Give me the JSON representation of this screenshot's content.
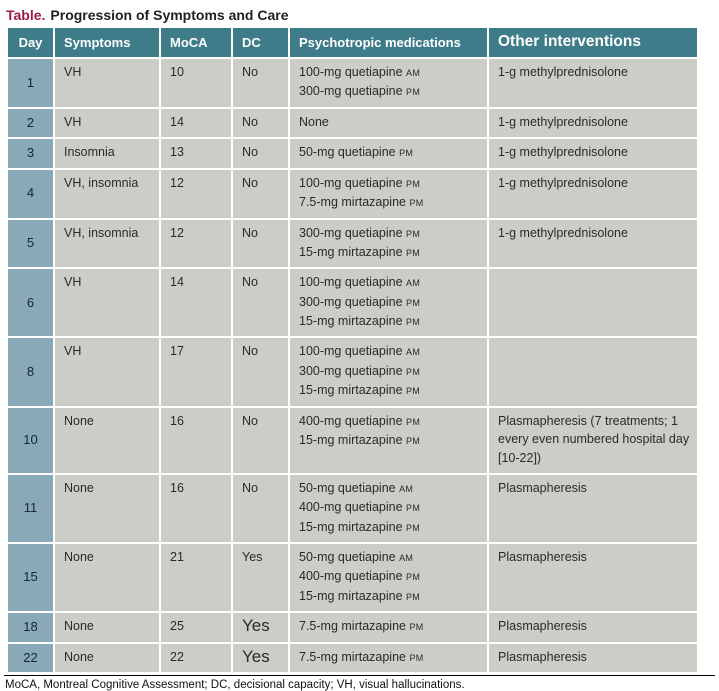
{
  "title": {
    "label": "Table.",
    "text": "Progression of Symptoms and Care"
  },
  "columns": [
    {
      "label": "Day"
    },
    {
      "label": "Symptoms"
    },
    {
      "label": "MoCA"
    },
    {
      "label": "DC"
    },
    {
      "label": "Psychotropic medications"
    },
    {
      "label": "Other interventions"
    }
  ],
  "rows": [
    {
      "day": "1",
      "symptoms": "VH",
      "moca": "10",
      "dc": "No",
      "dc_large": false,
      "medications": [
        {
          "dose": "100-mg quetiapine",
          "period": "AM"
        },
        {
          "dose": "300-mg quetiapine",
          "period": "PM"
        }
      ],
      "other": "1-g methylprednisolone"
    },
    {
      "day": "2",
      "symptoms": "VH",
      "moca": "14",
      "dc": "No",
      "dc_large": false,
      "medications": [
        {
          "dose": "None",
          "period": ""
        }
      ],
      "other": "1-g methylprednisolone"
    },
    {
      "day": "3",
      "symptoms": "Insomnia",
      "moca": "13",
      "dc": "No",
      "dc_large": false,
      "medications": [
        {
          "dose": "50-mg quetiapine",
          "period": "PM"
        }
      ],
      "other": "1-g methylprednisolone"
    },
    {
      "day": "4",
      "symptoms": "VH, insomnia",
      "moca": "12",
      "dc": "No",
      "dc_large": false,
      "medications": [
        {
          "dose": "100-mg quetiapine",
          "period": "PM"
        },
        {
          "dose": "7.5-mg mirtazapine",
          "period": "PM"
        }
      ],
      "other": "1-g methylprednisolone"
    },
    {
      "day": "5",
      "symptoms": "VH, insomnia",
      "moca": "12",
      "dc": "No",
      "dc_large": false,
      "medications": [
        {
          "dose": "300-mg quetiapine",
          "period": "PM"
        },
        {
          "dose": "15-mg mirtazapine",
          "period": "PM"
        }
      ],
      "other": "1-g methylprednisolone"
    },
    {
      "day": "6",
      "symptoms": "VH",
      "moca": "14",
      "dc": "No",
      "dc_large": false,
      "medications": [
        {
          "dose": "100-mg quetiapine",
          "period": "AM"
        },
        {
          "dose": "300-mg quetiapine",
          "period": "PM"
        },
        {
          "dose": "15-mg mirtazapine",
          "period": "PM"
        }
      ],
      "other": ""
    },
    {
      "day": "8",
      "symptoms": "VH",
      "moca": "17",
      "dc": "No",
      "dc_large": false,
      "medications": [
        {
          "dose": "100-mg quetiapine",
          "period": "AM"
        },
        {
          "dose": "300-mg quetiapine",
          "period": "PM"
        },
        {
          "dose": "15-mg mirtazapine",
          "period": "PM"
        }
      ],
      "other": ""
    },
    {
      "day": "10",
      "symptoms": "None",
      "moca": "16",
      "dc": "No",
      "dc_large": false,
      "medications": [
        {
          "dose": "400-mg quetiapine",
          "period": "PM"
        },
        {
          "dose": "15-mg mirtazapine",
          "period": "PM"
        }
      ],
      "other": "Plasmapheresis (7 treatments; 1 every even numbered hospital day [10-22])"
    },
    {
      "day": "11",
      "symptoms": "None",
      "moca": "16",
      "dc": "No",
      "dc_large": false,
      "medications": [
        {
          "dose": "50-mg quetiapine",
          "period": "AM"
        },
        {
          "dose": "400-mg quetiapine",
          "period": "PM"
        },
        {
          "dose": "15-mg mirtazapine",
          "period": "PM"
        }
      ],
      "other": "Plasmapheresis"
    },
    {
      "day": "15",
      "symptoms": "None",
      "moca": "21",
      "dc": "Yes",
      "dc_large": false,
      "medications": [
        {
          "dose": "50-mg quetiapine",
          "period": "AM"
        },
        {
          "dose": "400-mg quetiapine",
          "period": "PM"
        },
        {
          "dose": "15-mg mirtazapine",
          "period": "PM"
        }
      ],
      "other": "Plasmapheresis"
    },
    {
      "day": "18",
      "symptoms": "None",
      "moca": "25",
      "dc": "Yes",
      "dc_large": true,
      "medications": [
        {
          "dose": "7.5-mg mirtazapine",
          "period": "PM"
        }
      ],
      "other": "Plasmapheresis"
    },
    {
      "day": "22",
      "symptoms": "None",
      "moca": "22",
      "dc": "Yes",
      "dc_large": true,
      "medications": [
        {
          "dose": "7.5-mg mirtazapine",
          "period": "PM"
        }
      ],
      "other": "Plasmapheresis"
    }
  ],
  "footnote": "MoCA, Montreal Cognitive Assessment; DC, decisional capacity; VH, visual hallucinations.",
  "colors": {
    "header_bg": "#3f7c8a",
    "day_bg": "#8aa9b7",
    "cell_bg": "#cccdc7",
    "title_accent": "#9e1c4d",
    "rule": "#000000"
  }
}
